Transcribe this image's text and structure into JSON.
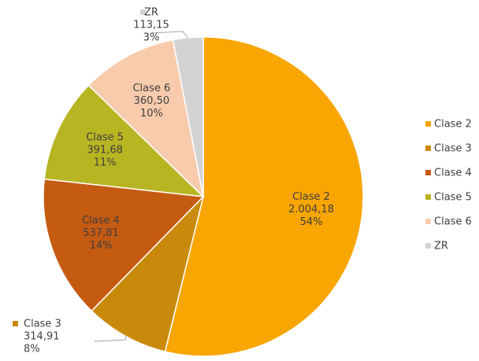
{
  "chart_data": {
    "type": "pie",
    "categories": [
      "Clase 2",
      "Clase 3",
      "Clase 4",
      "Clase 5",
      "Clase 6",
      "ZR"
    ],
    "values": [
      2004.18,
      314.91,
      537.81,
      391.68,
      360.5,
      113.15
    ],
    "value_labels": [
      "2.004,18",
      "314,91",
      "537,81",
      "391,68",
      "360,50",
      "113,15"
    ],
    "percent_labels": [
      "54%",
      "8%",
      "14%",
      "11%",
      "10%",
      "3%"
    ],
    "colors": [
      "#f9a602",
      "#c98a0c",
      "#c55a11",
      "#b8b523",
      "#f8cbad",
      "#d3d3d3"
    ],
    "legend": "right"
  }
}
